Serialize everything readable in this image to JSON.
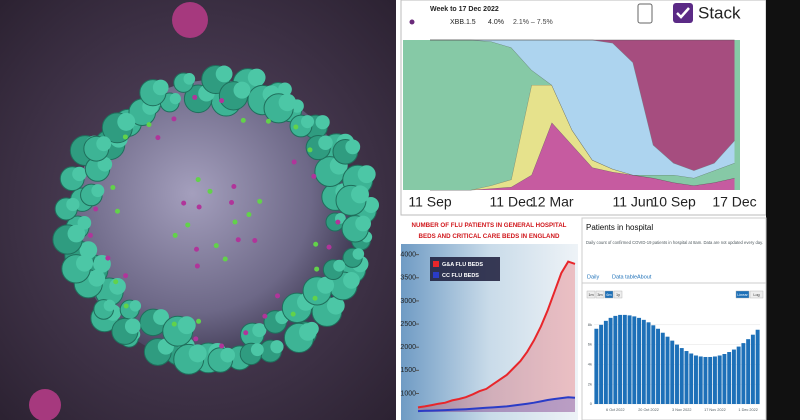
{
  "chart_data": [
    {
      "type": "area",
      "subtitle": "Week to 17 Dec 2022",
      "tooltip": {
        "name": "XBB.1.5",
        "value": "4.0%",
        "range": "2.1% – 7.5%"
      },
      "toggle": "Stack",
      "categories": [
        "11 Sep",
        null,
        null,
        null,
        "11 Dec",
        null,
        "12 Mar",
        null,
        null,
        null,
        "11 Jun",
        null,
        "10 Sep",
        null,
        null,
        "17 Dec"
      ],
      "ylim": [
        0,
        100
      ],
      "series": [
        {
          "color": "#c65ba0",
          "values": [
            0,
            0,
            0,
            1,
            2,
            10,
            45,
            30,
            15,
            12,
            10,
            8,
            5,
            3,
            5,
            8
          ]
        },
        {
          "color": "#e6e28c",
          "values": [
            0,
            0,
            0,
            2,
            5,
            60,
            25,
            10,
            5,
            2,
            0,
            0,
            0,
            0,
            0,
            0
          ]
        },
        {
          "color": "#86c9a6",
          "values": [
            100,
            100,
            100,
            96,
            88,
            10,
            0,
            0,
            0,
            0,
            0,
            2,
            5,
            5,
            8,
            10
          ]
        },
        {
          "color": "#add4ef",
          "values": [
            0,
            0,
            0,
            1,
            5,
            20,
            30,
            60,
            80,
            84,
            75,
            20,
            8,
            5,
            5,
            15
          ]
        },
        {
          "color": "#a64d7f",
          "values": [
            0,
            0,
            0,
            0,
            0,
            0,
            0,
            0,
            0,
            2,
            15,
            70,
            82,
            87,
            82,
            67
          ]
        }
      ]
    },
    {
      "type": "line",
      "title": "NUMBER OF FLU PATIENTS IN GENERAL HOSPITAL BEDS AND CRITICAL CARE BEDS IN ENGLAND",
      "categories": [
        null,
        null,
        null,
        null,
        null,
        null,
        null,
        null,
        null,
        null,
        null,
        null,
        null,
        null,
        null,
        null,
        null,
        null,
        null,
        null,
        null,
        null,
        null,
        null
      ],
      "ylim": [
        600,
        4100
      ],
      "yticks": [
        1000,
        1500,
        2000,
        2500,
        3000,
        3500,
        4000
      ],
      "series": [
        {
          "name": "G&A FLU BEDS",
          "color": "#e8262b",
          "values": [
            700,
            720,
            750,
            780,
            800,
            850,
            880,
            920,
            980,
            1050,
            1100,
            1200,
            1300,
            1400,
            1550,
            1700,
            1900,
            2150,
            2450,
            2800,
            3200,
            3600,
            3850,
            3800
          ]
        },
        {
          "name": "CC FLU BEDS",
          "color": "#2a3cc7",
          "values": [
            620,
            625,
            630,
            635,
            640,
            650,
            655,
            660,
            670,
            680,
            690,
            700,
            710,
            720,
            740,
            760,
            780,
            800,
            830,
            860,
            880,
            900,
            920,
            910
          ]
        }
      ]
    },
    {
      "type": "bar",
      "title": "Patients in hospital",
      "subtitle": "Daily count of confirmed COVID-19 patients in hospital at 8am. Data are not updated every day.",
      "tabs": [
        "Daily",
        "Data table",
        "About"
      ],
      "ranges": [
        "1m",
        "3m",
        "6m",
        "1y"
      ],
      "scales": [
        "Linear",
        "Log"
      ],
      "categories": [
        null,
        null,
        null,
        null,
        "6 Oct 2022",
        null,
        null,
        null,
        null,
        null,
        null,
        "20 Oct 2022",
        null,
        null,
        null,
        null,
        null,
        null,
        "3 Nov 2022",
        null,
        null,
        null,
        null,
        null,
        null,
        "17 Nov 2022",
        null,
        null,
        null,
        null,
        null,
        null,
        "1 Dec 2022",
        null,
        null
      ],
      "ylim": [
        0,
        10000
      ],
      "yticks": [
        {
          "value": 0,
          "label": "0"
        },
        {
          "value": 2000,
          "label": "2k"
        },
        {
          "value": 4000,
          "label": "4k"
        },
        {
          "value": 6000,
          "label": "6k"
        },
        {
          "value": 8000,
          "label": "8k"
        }
      ],
      "color": "#1d70b8",
      "values": [
        7600,
        8000,
        8400,
        8700,
        8900,
        9000,
        9000,
        8950,
        8850,
        8700,
        8500,
        8250,
        7950,
        7600,
        7200,
        6800,
        6400,
        6000,
        5650,
        5350,
        5100,
        4900,
        4800,
        4750,
        4750,
        4800,
        4900,
        5050,
        5250,
        5500,
        5800,
        6150,
        6550,
        7000,
        7500
      ]
    }
  ]
}
